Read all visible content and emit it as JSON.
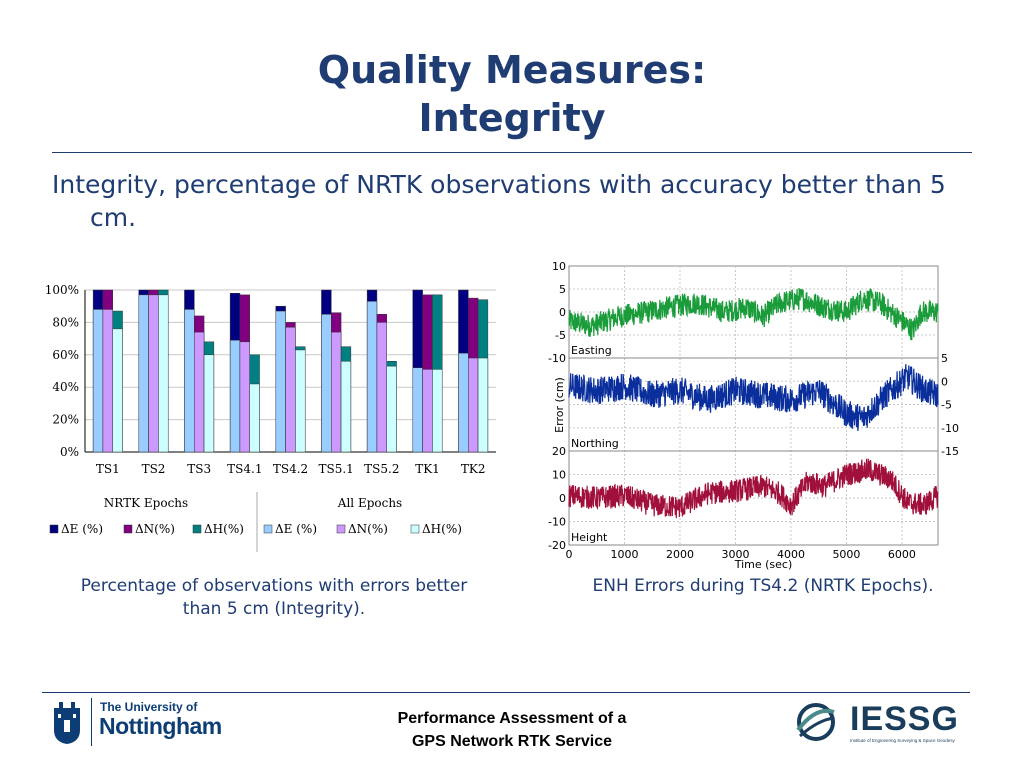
{
  "slide": {
    "title_line1": "Quality Measures:",
    "title_line2": "Integrity",
    "bullet": "Integrity, percentage of NRTK observations with accuracy better than 5 cm.",
    "left_caption": "Percentage of observations with errors better than 5 cm (Integrity).",
    "right_caption": "ENH Errors during TS4.2 (NRTK Epochs).",
    "footer_line1": "Performance Assessment of a",
    "footer_line2": "GPS Network RTK Service",
    "logo_left_line1": "The University of",
    "logo_left_line2": "Nottingham",
    "logo_right": "IESSG",
    "logo_right_sub": "Institute of Engineering Surveying & Space Geodesy"
  },
  "colors": {
    "title": "#1f3c73",
    "nrtk_e": "#000080",
    "nrtk_n": "#800080",
    "nrtk_h": "#008080",
    "all_e": "#99ccff",
    "all_n": "#cc99ff",
    "all_h": "#ccffff",
    "easting": "#1a9c3a",
    "northing": "#0a2f9c",
    "height": "#a0103a"
  },
  "chart_data": [
    {
      "type": "bar",
      "categories": [
        "TS1",
        "TS2",
        "TS3",
        "TS4.1",
        "TS4.2",
        "TS5.1",
        "TS5.2",
        "TK1",
        "TK2"
      ],
      "ylim": [
        0,
        100
      ],
      "yticks": [
        "0%",
        "20%",
        "40%",
        "60%",
        "80%",
        "100%"
      ],
      "group_labels": [
        "NRTK Epochs",
        "All Epochs"
      ],
      "series_nrtk": [
        {
          "name": "ΔE (%)",
          "values": [
            100,
            100,
            100,
            98,
            90,
            100,
            100,
            100,
            100
          ]
        },
        {
          "name": "ΔN(%)",
          "values": [
            100,
            100,
            84,
            97,
            80,
            86,
            85,
            97,
            95
          ]
        },
        {
          "name": "ΔH(%)",
          "values": [
            87,
            100,
            68,
            60,
            65,
            65,
            56,
            97,
            94
          ]
        }
      ],
      "series_all": [
        {
          "name": "ΔE (%)",
          "values": [
            88,
            97,
            88,
            69,
            87,
            85,
            93,
            52,
            61
          ]
        },
        {
          "name": "ΔN(%)",
          "values": [
            88,
            97,
            74,
            68,
            77,
            74,
            80,
            51,
            58
          ]
        },
        {
          "name": "ΔH(%)",
          "values": [
            76,
            97,
            60,
            42,
            63,
            56,
            53,
            51,
            58
          ]
        }
      ]
    },
    {
      "type": "line",
      "xlabel": "Time (sec)",
      "ylabel": "Error (cm)",
      "xlim": [
        0,
        6650
      ],
      "xticks": [
        "0",
        "1000",
        "2000",
        "3000",
        "4000",
        "5000",
        "6000"
      ],
      "panels": [
        {
          "name": "Easting",
          "ylim": [
            -10,
            10
          ],
          "ticks": [
            "10",
            "5",
            "0",
            "-5",
            "-10"
          ],
          "axis_side": "left",
          "trend": [
            [
              0,
              -2
            ],
            [
              400,
              -3
            ],
            [
              900,
              -1
            ],
            [
              1400,
              0
            ],
            [
              1800,
              1
            ],
            [
              2300,
              2
            ],
            [
              2800,
              0
            ],
            [
              3200,
              1
            ],
            [
              3500,
              -1
            ],
            [
              3800,
              2
            ],
            [
              4200,
              3
            ],
            [
              4600,
              1
            ],
            [
              5000,
              0
            ],
            [
              5300,
              3
            ],
            [
              5600,
              2
            ],
            [
              5900,
              -1
            ],
            [
              6200,
              -4
            ],
            [
              6350,
              0
            ],
            [
              6650,
              0
            ]
          ],
          "amplitude": 2.5
        },
        {
          "name": "Northing",
          "ylim": [
            -15,
            5
          ],
          "ticks": [
            "5",
            "0",
            "-5",
            "-10",
            "-15"
          ],
          "axis_side": "right",
          "trend": [
            [
              0,
              -1
            ],
            [
              500,
              -2
            ],
            [
              1000,
              -1
            ],
            [
              1500,
              -3
            ],
            [
              2000,
              -2
            ],
            [
              2500,
              -4
            ],
            [
              3000,
              -2
            ],
            [
              3500,
              -3
            ],
            [
              4000,
              -4
            ],
            [
              4500,
              -2
            ],
            [
              5000,
              -7
            ],
            [
              5300,
              -8
            ],
            [
              5700,
              -3
            ],
            [
              6100,
              1
            ],
            [
              6400,
              -2
            ],
            [
              6650,
              -3
            ]
          ],
          "amplitude": 3
        },
        {
          "name": "Height",
          "ylim": [
            -20,
            20
          ],
          "ticks": [
            "20",
            "10",
            "0",
            "-10",
            "-20"
          ],
          "axis_side": "left",
          "trend": [
            [
              0,
              1
            ],
            [
              500,
              0
            ],
            [
              1000,
              1
            ],
            [
              1500,
              -3
            ],
            [
              2000,
              -4
            ],
            [
              2500,
              2
            ],
            [
              3000,
              3
            ],
            [
              3500,
              5
            ],
            [
              3800,
              2
            ],
            [
              4000,
              -3
            ],
            [
              4300,
              7
            ],
            [
              4600,
              5
            ],
            [
              5000,
              10
            ],
            [
              5400,
              12
            ],
            [
              5800,
              8
            ],
            [
              6100,
              -2
            ],
            [
              6400,
              -3
            ],
            [
              6650,
              1
            ]
          ],
          "amplitude": 5
        }
      ]
    }
  ]
}
